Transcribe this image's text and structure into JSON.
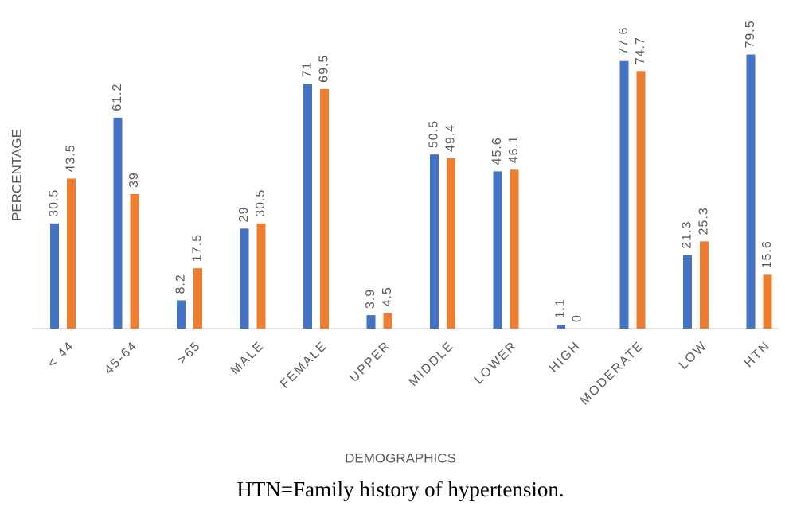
{
  "chart_data": {
    "type": "bar",
    "x_label": "DEMOGRAPHICS",
    "y_label": "PERCENTAGE",
    "caption": "HTN=Family history of hypertension.",
    "categories": [
      "< 44",
      "45-64",
      ">65",
      "MALE",
      "FEMALE",
      "UPPER",
      "MIDDLE",
      "LOWER",
      "HIGH",
      "MODERATE",
      "LOW",
      "HTN"
    ],
    "series": [
      {
        "color": "#4472c4",
        "values": [
          30.5,
          61.2,
          8.2,
          29,
          71,
          3.9,
          50.5,
          45.6,
          1.1,
          77.6,
          21.3,
          79.5
        ]
      },
      {
        "color": "#ed7d31",
        "values": [
          43.5,
          39,
          17.5,
          30.5,
          69.5,
          4.5,
          49.4,
          46.1,
          0,
          74.7,
          25.3,
          15.6
        ]
      }
    ],
    "ylim": [
      0,
      90
    ]
  }
}
